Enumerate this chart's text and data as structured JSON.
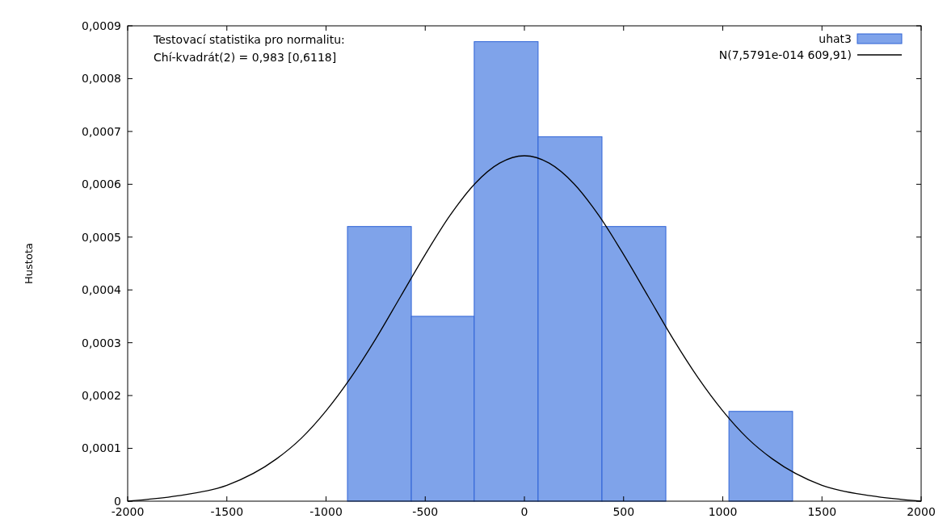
{
  "chart_data": {
    "type": "histogram",
    "ylabel": "Hustota",
    "annotations": [
      "Testovací statistika pro normalitu:",
      "Chí-kvadrát(2) = 0,983 [0,6118]"
    ],
    "bins": [
      -892,
      -570,
      -253,
      69,
      391,
      713,
      1031,
      1352
    ],
    "series": [
      {
        "name": "uhat3",
        "color": "#7fa3ea",
        "values": [
          0.00052,
          0.00035,
          0.00087,
          0.00069,
          0.00052,
          0,
          0.00017
        ]
      },
      {
        "name": "N(7,5791e-014 609,91)",
        "type": "line",
        "color": "#000000",
        "x": [
          -2000,
          -1750,
          -1500,
          -1250,
          -1125,
          -1000,
          -875,
          -750,
          -625,
          -500,
          -375,
          -250,
          -125,
          0,
          125,
          250,
          375,
          500,
          625,
          750,
          875,
          1000,
          1125,
          1250,
          1500,
          1750,
          2000
        ],
        "values": [
          0,
          1e-05,
          3e-05,
          8e-05,
          0.000119,
          0.000171,
          0.000234,
          0.000307,
          0.000387,
          0.000467,
          0.000541,
          0.000601,
          0.00064,
          0.000654,
          0.00064,
          0.000601,
          0.000541,
          0.000467,
          0.000387,
          0.000307,
          0.000234,
          0.000171,
          0.000119,
          8e-05,
          3e-05,
          1e-05,
          0
        ]
      }
    ],
    "xlim": [
      -2000,
      2000
    ],
    "xticks": [
      -2000,
      -1500,
      -1000,
      -500,
      0,
      500,
      1000,
      1500,
      2000
    ],
    "ylim": [
      0,
      0.0009
    ],
    "yticks": [
      0,
      {
        "value": 0.0001,
        "label": "0,0001"
      },
      {
        "value": 0.0002,
        "label": "0,0002"
      },
      {
        "value": 0.0003,
        "label": "0,0003"
      },
      {
        "value": 0.0004,
        "label": "0,0004"
      },
      {
        "value": 0.0005,
        "label": "0,0005"
      },
      {
        "value": 0.0006,
        "label": "0,0006"
      },
      {
        "value": 0.0007,
        "label": "0,0007"
      },
      {
        "value": 0.0008,
        "label": "0,0008"
      },
      {
        "value": 0.0009,
        "label": "0,0009"
      }
    ],
    "grid": false,
    "legend": "top right"
  }
}
